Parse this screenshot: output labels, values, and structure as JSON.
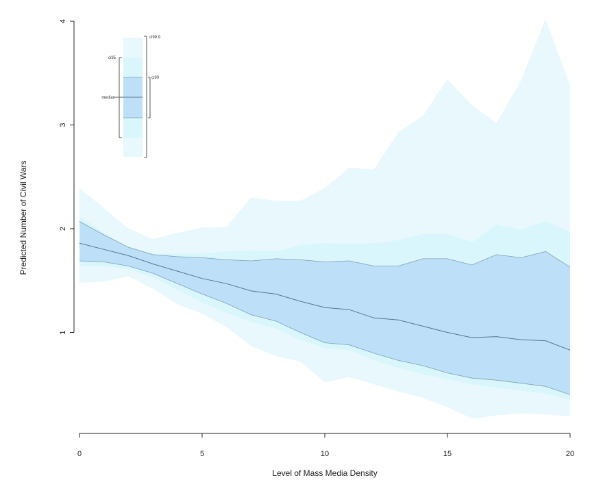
{
  "chart_data": {
    "type": "area",
    "title": "",
    "xlabel": "Level of Mass Media Density",
    "ylabel": "Predicted Number of Civil Wars",
    "xlim": [
      0,
      20
    ],
    "ylim": [
      0,
      4
    ],
    "x_ticks": [
      0,
      5,
      10,
      15,
      20
    ],
    "y_ticks": [
      1,
      2,
      3,
      4
    ],
    "grid": false,
    "colors": {
      "ci999": "#e8f8fd",
      "ci95": "#d8f6fc",
      "ci90": "#bde0f8",
      "median": "#5a7388",
      "band_edge": "#7f9eb3"
    },
    "x": [
      0,
      1,
      2,
      3,
      4,
      5,
      6,
      7,
      8,
      9,
      10,
      11,
      12,
      13,
      14,
      15,
      16,
      17,
      18,
      19,
      20
    ],
    "series": [
      {
        "name": "median",
        "values": [
          1.86,
          1.8,
          1.74,
          1.66,
          1.59,
          1.52,
          1.47,
          1.4,
          1.37,
          1.3,
          1.24,
          1.22,
          1.14,
          1.12,
          1.06,
          1.0,
          0.95,
          0.96,
          0.93,
          0.92,
          0.83
        ]
      },
      {
        "name": "ci90_upper",
        "values": [
          2.07,
          1.94,
          1.82,
          1.75,
          1.73,
          1.72,
          1.7,
          1.69,
          1.71,
          1.7,
          1.68,
          1.69,
          1.64,
          1.64,
          1.71,
          1.71,
          1.65,
          1.75,
          1.72,
          1.78,
          1.63
        ]
      },
      {
        "name": "ci90_lower",
        "values": [
          1.69,
          1.68,
          1.64,
          1.57,
          1.47,
          1.37,
          1.28,
          1.17,
          1.11,
          1.0,
          0.9,
          0.88,
          0.8,
          0.73,
          0.68,
          0.61,
          0.56,
          0.54,
          0.51,
          0.48,
          0.4
        ]
      },
      {
        "name": "ci95_upper",
        "values": [
          2.12,
          1.96,
          1.83,
          1.76,
          1.76,
          1.76,
          1.78,
          1.79,
          1.78,
          1.84,
          1.86,
          1.85,
          1.86,
          1.89,
          1.95,
          1.95,
          1.87,
          2.04,
          1.99,
          2.07,
          1.97
        ]
      },
      {
        "name": "ci95_lower",
        "values": [
          1.64,
          1.64,
          1.61,
          1.53,
          1.41,
          1.29,
          1.19,
          1.1,
          1.04,
          0.93,
          0.85,
          0.83,
          0.73,
          0.66,
          0.6,
          0.55,
          0.5,
          0.47,
          0.44,
          0.41,
          0.35
        ]
      },
      {
        "name": "ci999_upper",
        "values": [
          2.39,
          2.2,
          2.0,
          1.9,
          1.96,
          2.01,
          2.02,
          2.3,
          2.27,
          2.27,
          2.39,
          2.59,
          2.57,
          2.93,
          3.09,
          3.44,
          3.19,
          3.02,
          3.43,
          4.02,
          3.38
        ]
      },
      {
        "name": "ci999_lower",
        "values": [
          1.48,
          1.49,
          1.54,
          1.42,
          1.27,
          1.18,
          1.05,
          0.87,
          0.77,
          0.72,
          0.52,
          0.57,
          0.5,
          0.43,
          0.37,
          0.28,
          0.17,
          0.2,
          0.22,
          0.21,
          0.19
        ]
      }
    ],
    "legend": {
      "position": "top-left",
      "labels": {
        "ci999": "ci99.9",
        "ci95": "ci95",
        "ci90": "ci90",
        "median": "median"
      }
    }
  }
}
